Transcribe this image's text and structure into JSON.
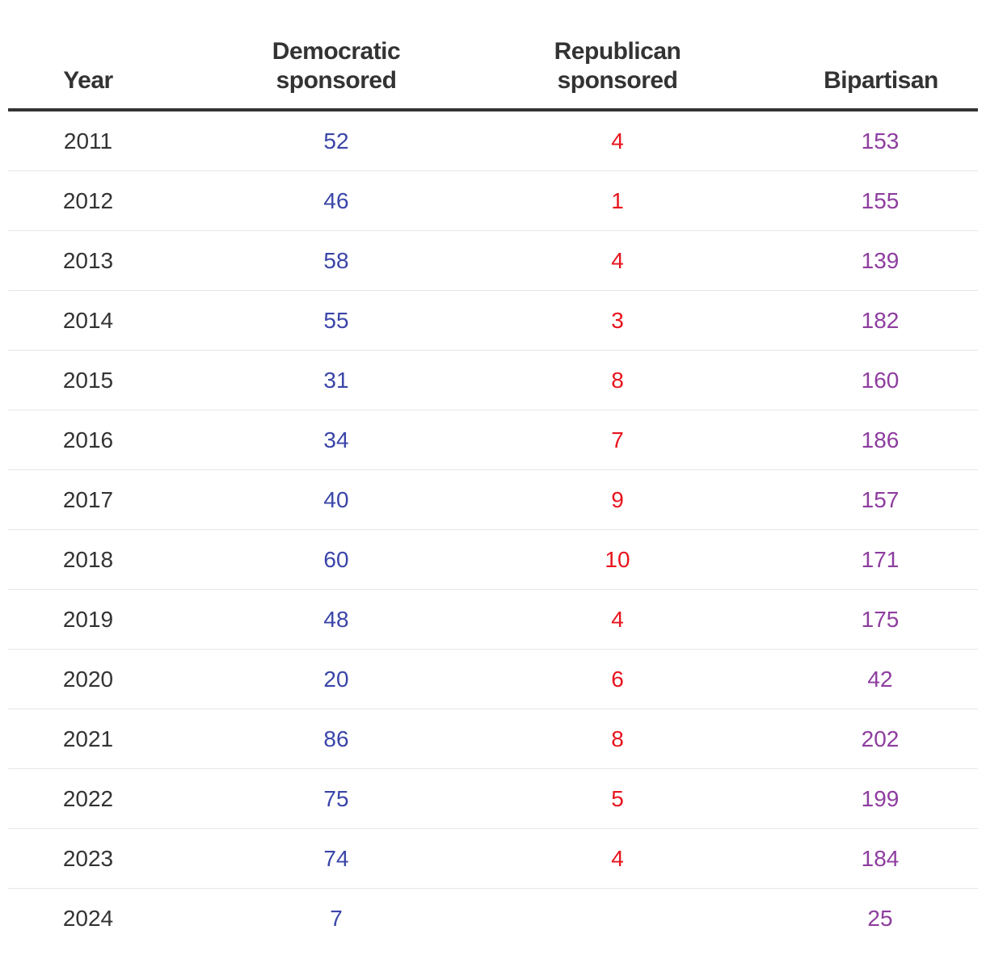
{
  "chart_data": {
    "type": "table",
    "columns": [
      "Year",
      "Democratic\nsponsored",
      "Republican\nsponsored",
      "Bipartisan"
    ],
    "colors": {
      "year": "#333333",
      "democratic": "#3a45a8",
      "republican": "#e8141e",
      "bipartisan": "#8e3d9f"
    },
    "rows": [
      {
        "year": "2011",
        "dem": "52",
        "rep": "4",
        "bip": "153"
      },
      {
        "year": "2012",
        "dem": "46",
        "rep": "1",
        "bip": "155"
      },
      {
        "year": "2013",
        "dem": "58",
        "rep": "4",
        "bip": "139"
      },
      {
        "year": "2014",
        "dem": "55",
        "rep": "3",
        "bip": "182"
      },
      {
        "year": "2015",
        "dem": "31",
        "rep": "8",
        "bip": "160"
      },
      {
        "year": "2016",
        "dem": "34",
        "rep": "7",
        "bip": "186"
      },
      {
        "year": "2017",
        "dem": "40",
        "rep": "9",
        "bip": "157"
      },
      {
        "year": "2018",
        "dem": "60",
        "rep": "10",
        "bip": "171"
      },
      {
        "year": "2019",
        "dem": "48",
        "rep": "4",
        "bip": "175"
      },
      {
        "year": "2020",
        "dem": "20",
        "rep": "6",
        "bip": "42"
      },
      {
        "year": "2021",
        "dem": "86",
        "rep": "8",
        "bip": "202"
      },
      {
        "year": "2022",
        "dem": "75",
        "rep": "5",
        "bip": "199"
      },
      {
        "year": "2023",
        "dem": "74",
        "rep": "4",
        "bip": "184"
      },
      {
        "year": "2024",
        "dem": "7",
        "rep": "",
        "bip": "25"
      }
    ]
  }
}
